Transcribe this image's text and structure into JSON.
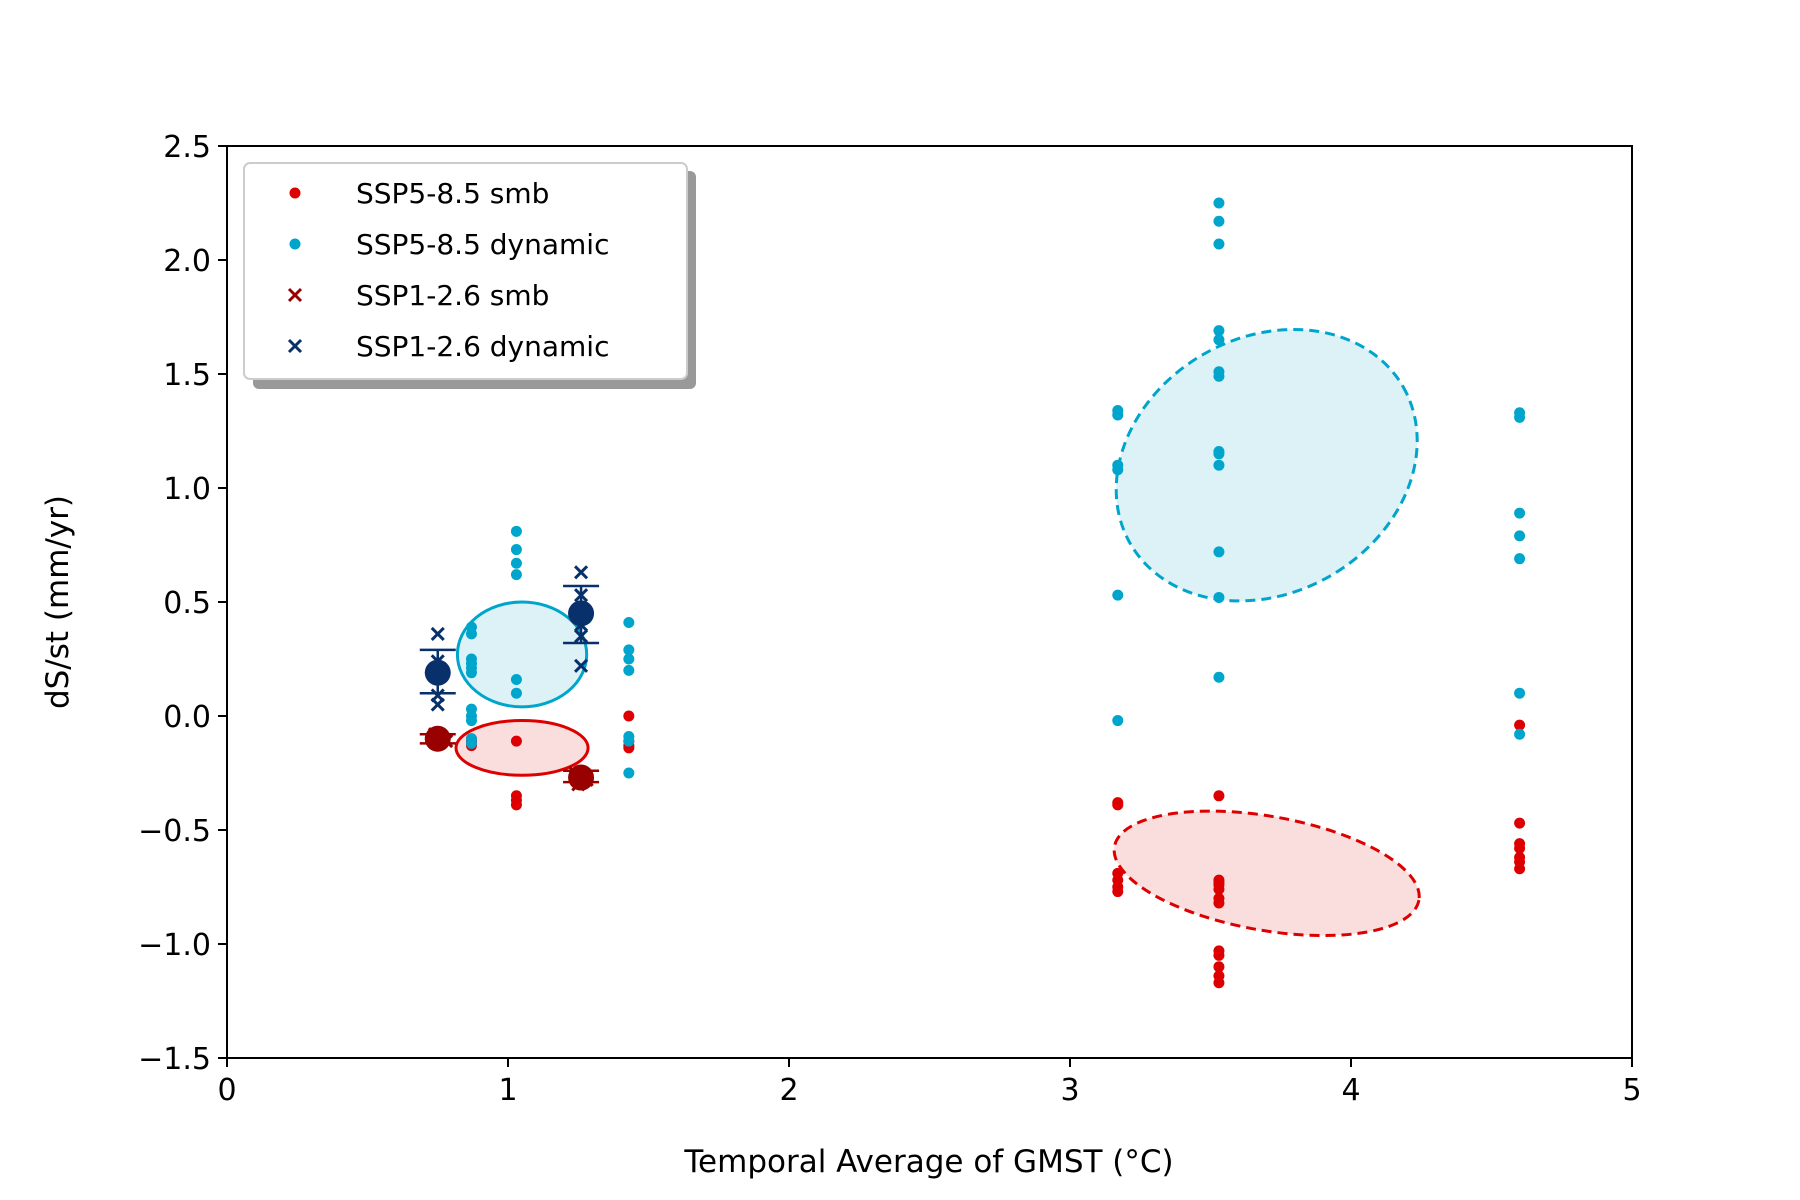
{
  "chart_data": {
    "type": "scatter",
    "title": "",
    "xlabel": "Temporal Average of GMST (°C)",
    "ylabel": "dS/st (mm/yr)",
    "xlim": [
      0,
      5
    ],
    "ylim": [
      -1.5,
      2.5
    ],
    "xticks": [
      0,
      1,
      2,
      3,
      4,
      5
    ],
    "xtick_labels": [
      "0",
      "1",
      "2",
      "3",
      "4",
      "5"
    ],
    "yticks": [
      -1.5,
      -1.0,
      -0.5,
      0.0,
      0.5,
      1.0,
      1.5,
      2.0,
      2.5
    ],
    "ytick_labels": [
      "−1.5",
      "−1.0",
      "−0.5",
      "0.0",
      "0.5",
      "1.0",
      "1.5",
      "2.0",
      "2.5"
    ],
    "grid": false,
    "legend_position": "top-left",
    "colors": {
      "ssp585_smb": "#dd0000",
      "ssp585_dynamic": "#00a5cc",
      "ssp126_smb": "#990000",
      "ssp126_dynamic": "#08306b"
    },
    "series": [
      {
        "name": "SSP5-8.5 smb",
        "marker": "dot",
        "color": "#dd0000",
        "points": [
          [
            0.87,
            -0.1
          ],
          [
            0.87,
            -0.11
          ],
          [
            0.87,
            -0.12
          ],
          [
            0.87,
            -0.13
          ],
          [
            1.03,
            -0.11
          ],
          [
            1.03,
            -0.35
          ],
          [
            1.03,
            -0.37
          ],
          [
            1.03,
            -0.39
          ],
          [
            1.43,
            0.0
          ],
          [
            1.43,
            -0.11
          ],
          [
            1.43,
            -0.13
          ],
          [
            1.43,
            -0.14
          ],
          [
            3.17,
            -0.38
          ],
          [
            3.17,
            -0.39
          ],
          [
            3.17,
            -0.69
          ],
          [
            3.17,
            -0.72
          ],
          [
            3.17,
            -0.75
          ],
          [
            3.17,
            -0.77
          ],
          [
            3.53,
            -0.35
          ],
          [
            3.53,
            -0.72
          ],
          [
            3.53,
            -0.73
          ],
          [
            3.53,
            -0.74
          ],
          [
            3.53,
            -0.76
          ],
          [
            3.53,
            -0.8
          ],
          [
            3.53,
            -0.82
          ],
          [
            3.53,
            -1.03
          ],
          [
            3.53,
            -1.05
          ],
          [
            3.53,
            -1.1
          ],
          [
            3.53,
            -1.14
          ],
          [
            3.53,
            -1.17
          ],
          [
            4.6,
            -0.04
          ],
          [
            4.6,
            -0.47
          ],
          [
            4.6,
            -0.56
          ],
          [
            4.6,
            -0.58
          ],
          [
            4.6,
            -0.62
          ],
          [
            4.6,
            -0.64
          ],
          [
            4.6,
            -0.67
          ]
        ]
      },
      {
        "name": "SSP5-8.5 dynamic",
        "marker": "dot",
        "color": "#00a5cc",
        "points": [
          [
            0.87,
            0.39
          ],
          [
            0.87,
            0.36
          ],
          [
            0.87,
            0.25
          ],
          [
            0.87,
            0.23
          ],
          [
            0.87,
            0.21
          ],
          [
            0.87,
            0.19
          ],
          [
            0.87,
            0.03
          ],
          [
            0.87,
            0.0
          ],
          [
            0.87,
            -0.02
          ],
          [
            0.87,
            -0.1
          ],
          [
            0.87,
            -0.12
          ],
          [
            1.03,
            0.81
          ],
          [
            1.03,
            0.73
          ],
          [
            1.03,
            0.67
          ],
          [
            1.03,
            0.62
          ],
          [
            1.03,
            0.16
          ],
          [
            1.03,
            0.1
          ],
          [
            1.43,
            0.41
          ],
          [
            1.43,
            0.29
          ],
          [
            1.43,
            0.25
          ],
          [
            1.43,
            0.2
          ],
          [
            1.43,
            -0.09
          ],
          [
            1.43,
            -0.11
          ],
          [
            1.43,
            -0.25
          ],
          [
            3.17,
            1.34
          ],
          [
            3.17,
            1.32
          ],
          [
            3.17,
            1.1
          ],
          [
            3.17,
            1.08
          ],
          [
            3.17,
            0.53
          ],
          [
            3.17,
            -0.02
          ],
          [
            3.53,
            2.25
          ],
          [
            3.53,
            2.17
          ],
          [
            3.53,
            2.07
          ],
          [
            3.53,
            1.69
          ],
          [
            3.53,
            1.65
          ],
          [
            3.53,
            1.51
          ],
          [
            3.53,
            1.49
          ],
          [
            3.53,
            1.16
          ],
          [
            3.53,
            1.15
          ],
          [
            3.53,
            1.1
          ],
          [
            3.53,
            0.72
          ],
          [
            3.53,
            0.52
          ],
          [
            3.53,
            0.17
          ],
          [
            4.6,
            1.33
          ],
          [
            4.6,
            1.31
          ],
          [
            4.6,
            0.89
          ],
          [
            4.6,
            0.79
          ],
          [
            4.6,
            0.69
          ],
          [
            4.6,
            0.1
          ],
          [
            4.6,
            -0.08
          ]
        ]
      },
      {
        "name": "SSP1-2.6 smb",
        "marker": "x",
        "color": "#990000",
        "points": [
          [
            0.74,
            -0.08
          ],
          [
            0.76,
            -0.1
          ],
          [
            0.78,
            -0.11
          ],
          [
            0.75,
            -0.12
          ],
          [
            1.24,
            -0.25
          ],
          [
            1.26,
            -0.27
          ],
          [
            1.28,
            -0.28
          ],
          [
            1.25,
            -0.3
          ]
        ]
      },
      {
        "name": "SSP1-2.6 dynamic",
        "marker": "x",
        "color": "#08306b",
        "points": [
          [
            0.75,
            0.36
          ],
          [
            0.75,
            0.24
          ],
          [
            0.75,
            0.17
          ],
          [
            0.75,
            0.09
          ],
          [
            0.75,
            0.05
          ],
          [
            1.26,
            0.63
          ],
          [
            1.26,
            0.53
          ],
          [
            1.26,
            0.4
          ],
          [
            1.26,
            0.35
          ],
          [
            1.26,
            0.22
          ]
        ]
      }
    ],
    "means": [
      {
        "x": 0.75,
        "y": 0.19,
        "err_low": 0.1,
        "err_high": 0.29,
        "color": "#08306b"
      },
      {
        "x": 1.26,
        "y": 0.45,
        "err_low": 0.32,
        "err_high": 0.57,
        "color": "#08306b"
      },
      {
        "x": 0.75,
        "y": -0.1,
        "err_low": -0.12,
        "err_high": -0.08,
        "color": "#990000"
      },
      {
        "x": 1.26,
        "y": -0.27,
        "err_low": -0.29,
        "err_high": -0.24,
        "color": "#990000"
      }
    ],
    "ellipses": [
      {
        "cx": 1.05,
        "cy": 0.27,
        "rx": 0.23,
        "ry": 0.23,
        "rot": 0,
        "stroke": "#00a5cc",
        "fill": "#dcf2f7",
        "dashed": false
      },
      {
        "cx": 1.05,
        "cy": -0.14,
        "rx": 0.235,
        "ry": 0.12,
        "rot": 0,
        "stroke": "#dd0000",
        "fill": "#fadddd",
        "dashed": false
      },
      {
        "cx": 3.7,
        "cy": 1.1,
        "rx": 0.56,
        "ry": 0.56,
        "rot": 30,
        "stroke": "#00a5cc",
        "fill": "#dcf2f7",
        "dashed": true
      },
      {
        "cx": 3.7,
        "cy": -0.69,
        "rx": 0.55,
        "ry": 0.25,
        "rot": -10,
        "stroke": "#dd0000",
        "fill": "#fadddd",
        "dashed": true
      }
    ]
  }
}
